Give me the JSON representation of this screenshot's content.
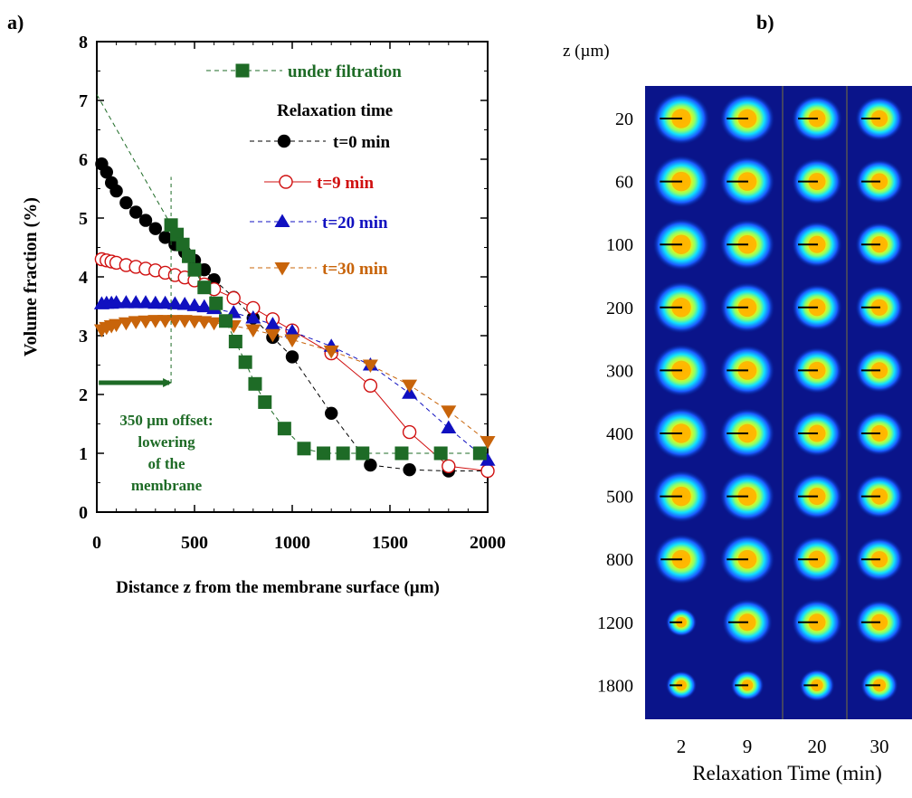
{
  "panel_a": {
    "label": "a)",
    "xlabel": "Distance z from the membrane surface (µm)",
    "ylabel": "Volume fraction (%)",
    "x_ticks": [
      "0",
      "500",
      "1000",
      "1500",
      "2000"
    ],
    "y_ticks": [
      "0",
      "1",
      "2",
      "3",
      "4",
      "5",
      "6",
      "7",
      "8"
    ],
    "legend_heading": "Relaxation time",
    "annotation_lines": [
      "350 µm offset:",
      "lowering",
      "of the",
      "membrane"
    ]
  },
  "panel_b": {
    "label": "b)",
    "z_header": "z (µm)",
    "xlabel": "Relaxation Time (min)",
    "z_labels": [
      "20",
      "60",
      "100",
      "200",
      "300",
      "400",
      "500",
      "800",
      "1200",
      "1800"
    ],
    "time_labels": [
      "2",
      "9",
      "20",
      "30"
    ]
  },
  "chart_data": [
    {
      "type": "line",
      "xlim": [
        0,
        2000
      ],
      "ylim": [
        0,
        8
      ],
      "xlabel": "Distance z from the membrane surface (µm)",
      "ylabel": "Volume fraction (%)",
      "grid": false,
      "legend_position": "top-right",
      "series": [
        {
          "name": "under filtration",
          "color": "#1e6b26",
          "marker": "square",
          "x": [
            380,
            410,
            440,
            470,
            500,
            550,
            610,
            660,
            710,
            760,
            810,
            860,
            960,
            1060,
            1160,
            1260,
            1360,
            1560,
            1760,
            1960
          ],
          "y": [
            4.88,
            4.72,
            4.55,
            4.35,
            4.12,
            3.82,
            3.55,
            3.25,
            2.9,
            2.55,
            2.18,
            1.87,
            1.42,
            1.08,
            1.0,
            1.0,
            1.0,
            1.0,
            1.0,
            1.0
          ]
        },
        {
          "name": "t=0 min",
          "color": "#000000",
          "marker": "circle",
          "x": [
            25,
            50,
            75,
            100,
            150,
            200,
            250,
            300,
            350,
            400,
            450,
            500,
            550,
            600,
            700,
            800,
            900,
            1000,
            1200,
            1400,
            1600,
            1800,
            2000
          ],
          "y": [
            5.92,
            5.78,
            5.6,
            5.46,
            5.26,
            5.1,
            4.96,
            4.82,
            4.67,
            4.55,
            4.42,
            4.28,
            4.12,
            3.95,
            3.65,
            3.3,
            2.97,
            2.64,
            1.68,
            0.8,
            0.72,
            0.7,
            0.7
          ]
        },
        {
          "name": "t=9 min",
          "color": "#d01010",
          "marker": "open-circle",
          "x": [
            25,
            50,
            75,
            100,
            150,
            200,
            250,
            300,
            350,
            400,
            450,
            500,
            550,
            600,
            700,
            800,
            900,
            1000,
            1200,
            1400,
            1600,
            1800,
            2000
          ],
          "y": [
            4.3,
            4.28,
            4.26,
            4.24,
            4.2,
            4.17,
            4.14,
            4.11,
            4.07,
            4.03,
            3.99,
            3.94,
            3.87,
            3.79,
            3.64,
            3.47,
            3.28,
            3.09,
            2.7,
            2.15,
            1.36,
            0.78,
            0.7
          ]
        },
        {
          "name": "t=20 min",
          "color": "#1010c0",
          "marker": "triangle-up",
          "x": [
            25,
            50,
            75,
            100,
            150,
            200,
            250,
            300,
            350,
            400,
            450,
            500,
            550,
            600,
            700,
            800,
            900,
            1000,
            1200,
            1400,
            1600,
            1800,
            2000
          ],
          "y": [
            3.54,
            3.55,
            3.55,
            3.56,
            3.56,
            3.56,
            3.56,
            3.55,
            3.55,
            3.54,
            3.53,
            3.51,
            3.49,
            3.46,
            3.39,
            3.3,
            3.19,
            3.07,
            2.82,
            2.5,
            2.02,
            1.43,
            0.88
          ]
        },
        {
          "name": "t=30 min",
          "color": "#c8640a",
          "marker": "triangle-down",
          "x": [
            25,
            50,
            75,
            100,
            150,
            200,
            250,
            300,
            350,
            400,
            450,
            500,
            550,
            600,
            700,
            800,
            900,
            1000,
            1200,
            1400,
            1600,
            1800,
            2000
          ],
          "y": [
            3.1,
            3.14,
            3.17,
            3.19,
            3.22,
            3.24,
            3.25,
            3.26,
            3.26,
            3.26,
            3.26,
            3.25,
            3.24,
            3.22,
            3.17,
            3.1,
            3.02,
            2.93,
            2.74,
            2.5,
            2.16,
            1.72,
            1.2
          ]
        },
        {
          "name": "",
          "color": "#1e6b26",
          "marker": "none",
          "x": [
            0,
            380
          ],
          "y": [
            7.1,
            4.88
          ]
        }
      ],
      "annotations": [
        {
          "type": "vertical-dashed-line",
          "x": 380,
          "y_range": [
            2.2,
            5.7
          ],
          "color": "#1e6b26"
        },
        {
          "type": "arrow",
          "from": [
            10,
            2.2
          ],
          "to": [
            380,
            2.2
          ],
          "color": "#1e6b26"
        }
      ]
    },
    {
      "type": "heatmap",
      "x_categories": [
        "2",
        "9",
        "20",
        "30"
      ],
      "y_categories": [
        "20",
        "60",
        "100",
        "200",
        "300",
        "400",
        "500",
        "800",
        "1200",
        "1800"
      ],
      "xlabel": "Relaxation Time (min)",
      "colormap": "jet",
      "values": [
        [
          0.9,
          0.85,
          0.75,
          0.7
        ],
        [
          0.9,
          0.85,
          0.75,
          0.7
        ],
        [
          0.9,
          0.85,
          0.75,
          0.7
        ],
        [
          0.9,
          0.85,
          0.75,
          0.7
        ],
        [
          0.9,
          0.85,
          0.75,
          0.7
        ],
        [
          0.9,
          0.85,
          0.75,
          0.7
        ],
        [
          0.9,
          0.85,
          0.75,
          0.7
        ],
        [
          0.85,
          0.85,
          0.75,
          0.7
        ],
        [
          0.3,
          0.75,
          0.75,
          0.7
        ],
        [
          0.3,
          0.35,
          0.4,
          0.45
        ]
      ]
    }
  ]
}
